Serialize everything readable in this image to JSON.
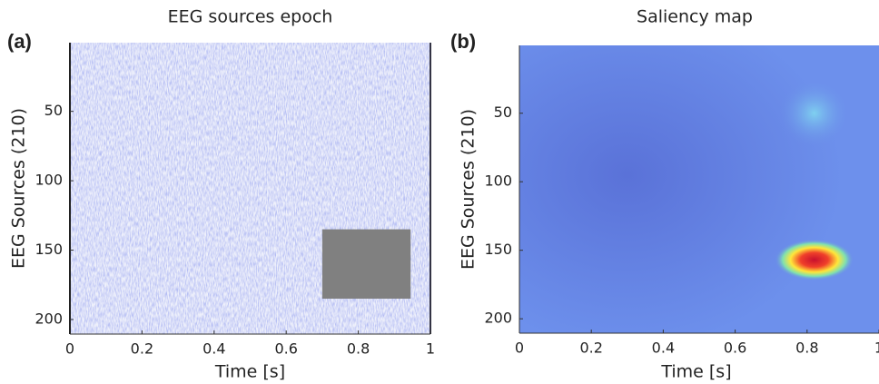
{
  "chart_data": [
    {
      "type": "image",
      "panel_label": "(a)",
      "title": "EEG sources epoch",
      "x_label": "Time [s]",
      "y_label": "EEG Sources (210)",
      "xlim": [
        0,
        1
      ],
      "ylim": [
        0.5,
        210.5
      ],
      "xticks": [
        0,
        0.2,
        0.4,
        0.6,
        0.8,
        1
      ],
      "yticks": [
        50,
        100,
        150,
        200
      ],
      "occlusion": {
        "x": [
          0.7,
          0.945
        ],
        "y": [
          135,
          185
        ],
        "color": "#808080"
      }
    },
    {
      "type": "heatmap",
      "panel_label": "(b)",
      "title": "Saliency map",
      "x_label": "Time [s]",
      "y_label": "EEG Sources (210)",
      "xlim": [
        0,
        1
      ],
      "ylim": [
        0.5,
        210.5
      ],
      "xticks": [
        0,
        0.2,
        0.4,
        0.6,
        0.8,
        1
      ],
      "yticks": [
        50,
        100,
        150,
        200
      ],
      "peaks": [
        {
          "x": 0.82,
          "y": 157,
          "rx": 0.11,
          "ry": 15,
          "color": "hot"
        },
        {
          "x": 0.82,
          "y": 50,
          "rx": 0.1,
          "ry": 25,
          "color": "cool"
        }
      ]
    }
  ]
}
